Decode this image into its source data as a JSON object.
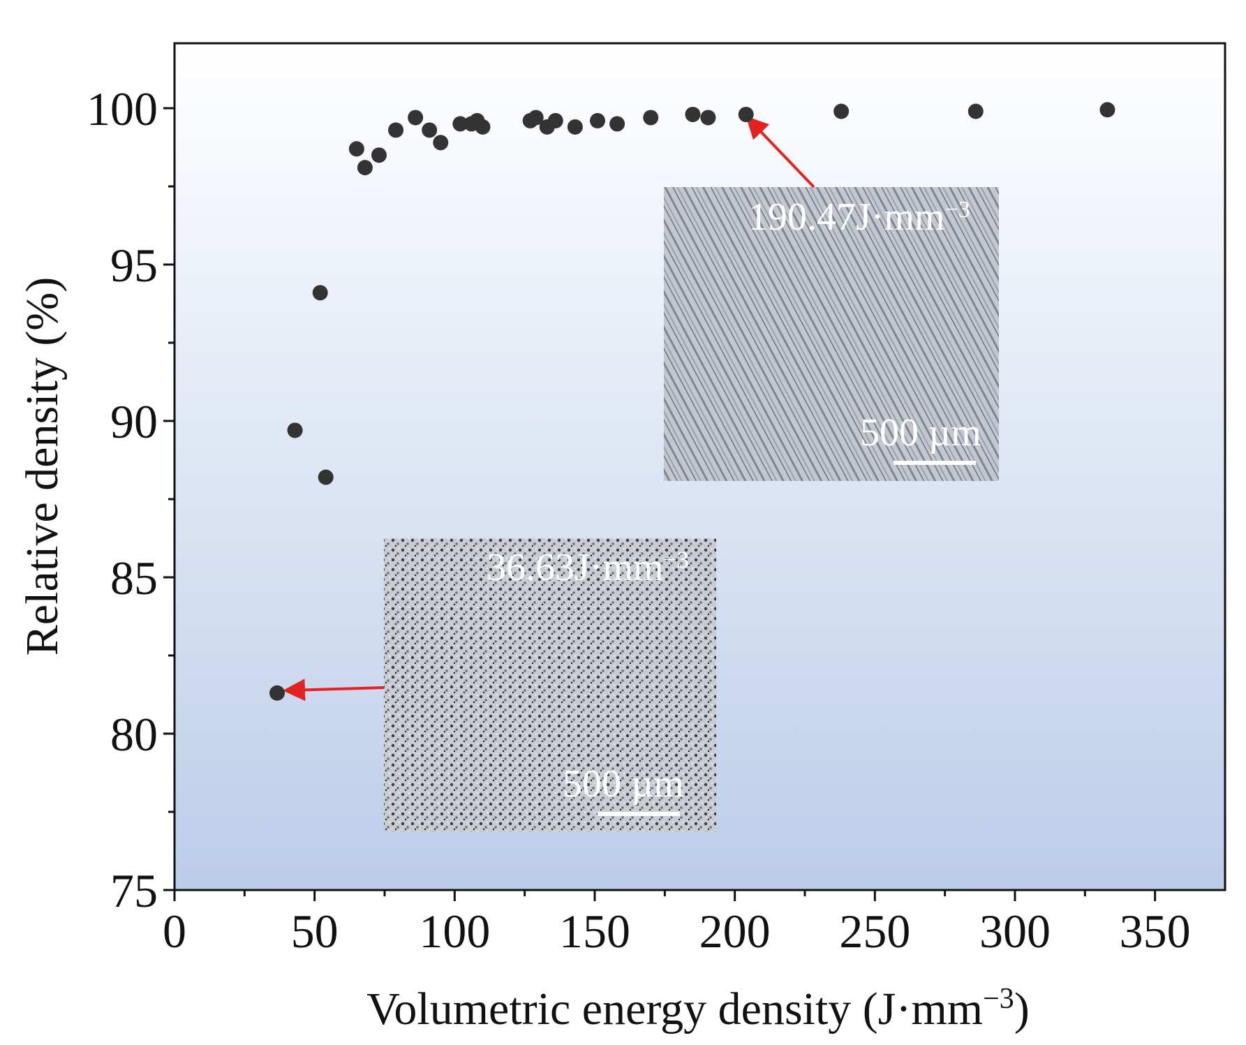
{
  "chart_data": {
    "type": "scatter",
    "title": "",
    "xlabel": "Volumetric energy density (J·mm",
    "xlabel_sup": "−3",
    "xlabel_tail": ")",
    "ylabel": "Relative density (%)",
    "xlim": [
      0,
      375
    ],
    "ylim": [
      75,
      102
    ],
    "x_ticks": [
      0,
      50,
      100,
      150,
      200,
      250,
      300,
      350
    ],
    "x_tick_labels": [
      "0",
      "50",
      "100",
      "150",
      "200",
      "250",
      "300",
      "350"
    ],
    "y_ticks": [
      75,
      80,
      85,
      90,
      95,
      100
    ],
    "y_tick_labels": [
      "75",
      "80",
      "85",
      "90",
      "95",
      "100"
    ],
    "grid": false,
    "legend": "none",
    "background_gradient": [
      "#ffffff",
      "#bccde9"
    ],
    "marker_color": "#333333",
    "arrow_color": "#e32222",
    "series": [
      {
        "x": [
          36.63,
          43,
          52,
          54,
          65,
          68,
          73,
          79,
          86,
          91,
          95,
          102,
          106,
          108,
          110,
          127,
          129,
          133,
          136,
          143,
          151,
          158,
          170,
          185,
          190.47,
          204,
          238,
          286,
          333
        ],
        "y": [
          81.3,
          89.7,
          94.1,
          88.2,
          98.7,
          98.1,
          98.5,
          99.3,
          99.7,
          99.3,
          98.9,
          99.5,
          99.5,
          99.6,
          99.4,
          99.6,
          99.7,
          99.4,
          99.6,
          99.4,
          99.6,
          99.5,
          99.7,
          99.8,
          99.7,
          99.8,
          99.9,
          99.9,
          99.95
        ]
      }
    ],
    "annotations": [
      {
        "label": "36.63J·mm",
        "sup": "−3",
        "scale_bar": "500 µm",
        "x": 36.63,
        "y": 81.3
      },
      {
        "label": "190.47J·mm",
        "sup": "−3",
        "scale_bar": "500 µm",
        "x": 204,
        "y": 99.75
      }
    ]
  }
}
